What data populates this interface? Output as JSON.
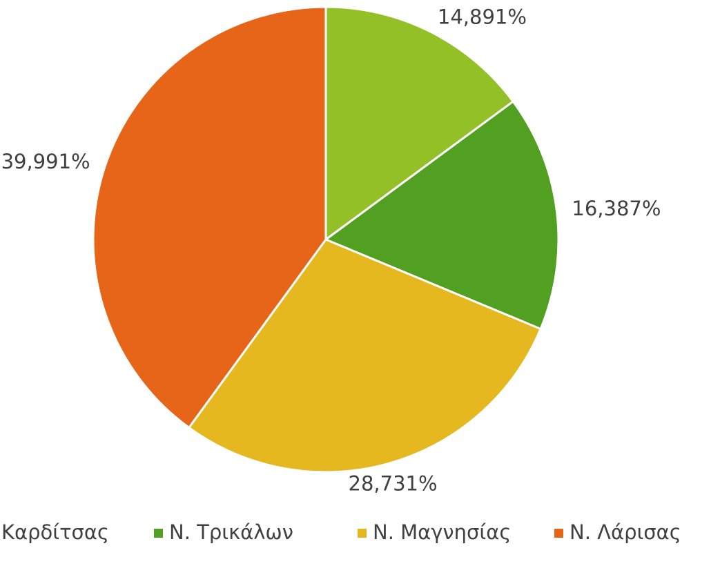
{
  "chart_data": {
    "type": "pie",
    "categories": [
      "Καρδίτσας",
      "Ν. Τρικάλων",
      "Ν. Μαγνησίας",
      "Ν. Λάρισας"
    ],
    "values": [
      14.891,
      16.387,
      28.731,
      39.991
    ],
    "value_labels": [
      "14,891%",
      "16,387%",
      "28,731%",
      "39,991%"
    ],
    "colors": [
      "#92c026",
      "#52a022",
      "#e5b820",
      "#e66518"
    ],
    "legend": "bottom"
  }
}
